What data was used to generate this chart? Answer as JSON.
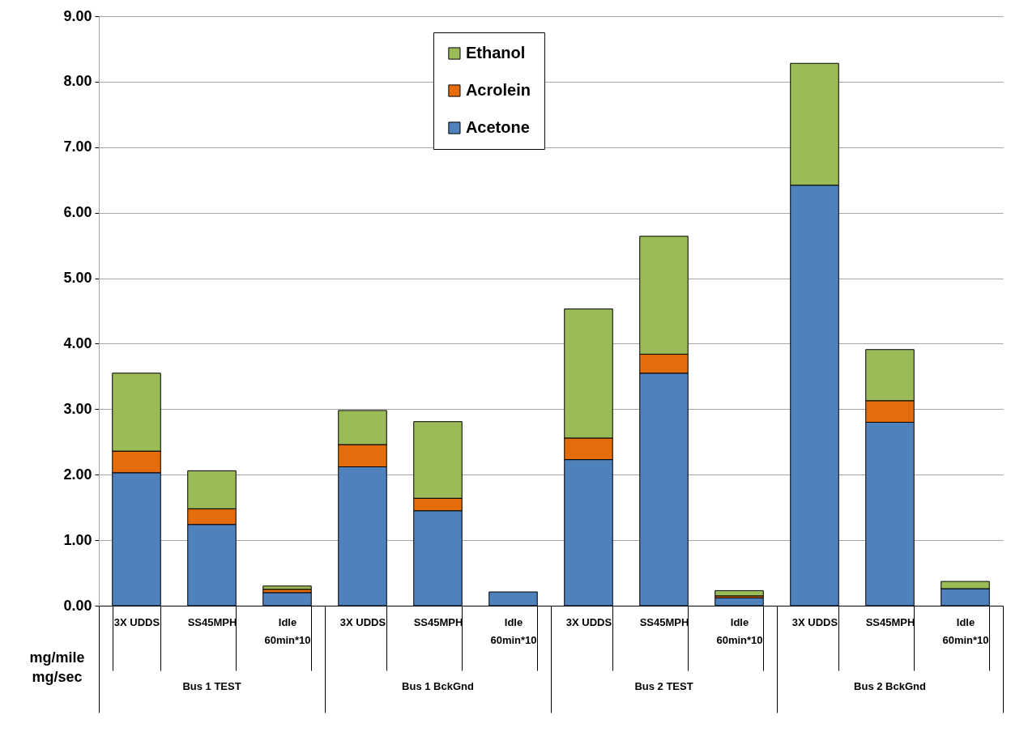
{
  "chart_data": {
    "type": "bar",
    "stacked": true,
    "ylabel": "mg/mile\nmg/sec",
    "categories": [
      "3X UDDS",
      "SS45MPH",
      "Idle\n60min*10",
      "3X UDDS",
      "SS45MPH",
      "Idle\n60min*10",
      "3X UDDS",
      "SS45MPH",
      "Idle\n60min*10",
      "3X UDDS",
      "SS45MPH",
      "Idle\n60min*10"
    ],
    "series": [
      {
        "name": "Acetone",
        "color": "#4f81bd",
        "values": [
          2.03,
          1.24,
          0.2,
          2.12,
          1.45,
          0.21,
          2.23,
          3.55,
          0.12,
          6.42,
          2.8,
          0.26
        ]
      },
      {
        "name": "Acrolein",
        "color": "#e46c0a",
        "values": [
          0.33,
          0.24,
          0.05,
          0.34,
          0.19,
          0,
          0.33,
          0.29,
          0.03,
          null,
          0.33,
          0
        ]
      },
      {
        "name": "Ethanol",
        "color": "#9bbb59",
        "values": [
          1.19,
          0.58,
          0.05,
          0.52,
          1.17,
          0,
          1.97,
          1.8,
          0.08,
          1.86,
          0.78,
          0.11
        ]
      }
    ],
    "annotations": [
      "Bus 1 TEST",
      "Bus 1 BckGnd",
      "Bus 2 TEST",
      "Bus 2 BckGnd"
    ],
    "ylim": [
      0,
      9
    ],
    "yticks": [
      {
        "value": 0,
        "label": "0.00"
      },
      {
        "value": 1,
        "label": "1.00"
      },
      {
        "value": 2,
        "label": "2.00"
      },
      {
        "value": 3,
        "label": "3.00"
      },
      {
        "value": 4,
        "label": "4.00"
      },
      {
        "value": 5,
        "label": "5.00"
      },
      {
        "value": 6,
        "label": "6.00"
      },
      {
        "value": 7,
        "label": "7.00"
      },
      {
        "value": 8,
        "label": "8.00"
      },
      {
        "value": 9,
        "label": "9.00"
      }
    ],
    "grid": "y",
    "legend": "top"
  }
}
